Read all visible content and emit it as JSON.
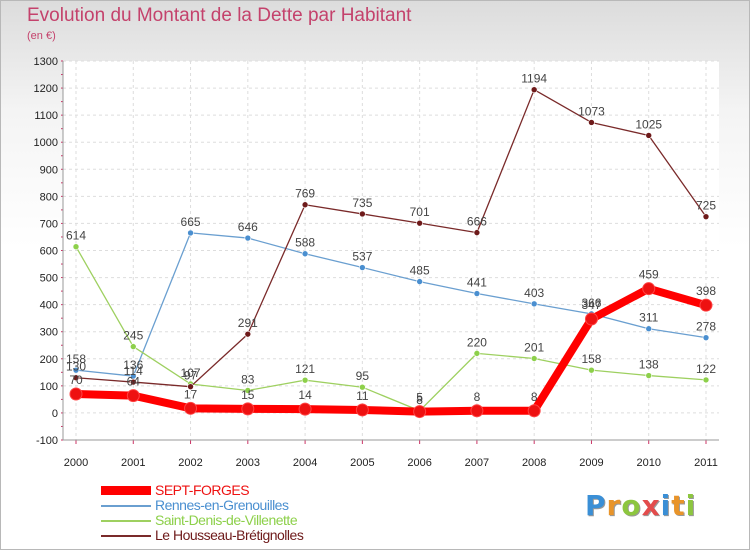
{
  "title": "Evolution du Montant de la Dette par Habitant",
  "subtitle": "(en €)",
  "logo": {
    "text": "Proxiti",
    "letter_colors": [
      "#3a8fd6",
      "#e8942a",
      "#8dc63f",
      "#e34c4c",
      "#3a8fd6",
      "#e8942a",
      "#8dc63f"
    ]
  },
  "chart_data": {
    "type": "line",
    "title": "Evolution du Montant de la Dette par Habitant",
    "ylabel": "(en €)",
    "xlabel": "",
    "x": [
      "2000",
      "2001",
      "2002",
      "2003",
      "2004",
      "2005",
      "2006",
      "2007",
      "2008",
      "2009",
      "2010",
      "2011"
    ],
    "ylim": [
      -100,
      1300
    ],
    "yticks": [
      -100,
      0,
      100,
      200,
      300,
      400,
      500,
      600,
      700,
      800,
      900,
      1000,
      1100,
      1200,
      1300
    ],
    "grid": true,
    "legend_position": "bottom-left",
    "series": [
      {
        "name": "SEPT-FORGES",
        "color": "#ee1111",
        "line_color": "#ff0000",
        "emphasis": true,
        "values": [
          70,
          64,
          17,
          15,
          14,
          11,
          5,
          8,
          8,
          347,
          459,
          398
        ],
        "labels": [
          "70",
          "64",
          "17",
          "15",
          "14",
          "11",
          "5",
          "8",
          "8",
          "347",
          "459",
          "398"
        ]
      },
      {
        "name": "Rennes-en-Grenouilles",
        "color": "#4a8fd0",
        "line_color": "#6a9fd0",
        "emphasis": false,
        "values": [
          158,
          136,
          665,
          646,
          588,
          537,
          485,
          441,
          403,
          366,
          311,
          278
        ],
        "labels": [
          "158",
          "136",
          "665",
          "646",
          "588",
          "537",
          "485",
          "441",
          "403",
          "366",
          "311",
          "278"
        ]
      },
      {
        "name": "Saint-Denis-de-Villenette",
        "color": "#8dd04a",
        "line_color": "#9ed060",
        "emphasis": false,
        "values": [
          614,
          245,
          107,
          83,
          121,
          95,
          8,
          220,
          201,
          158,
          138,
          122
        ],
        "labels": [
          "614",
          "245",
          "107",
          "83",
          "121",
          "95",
          "8",
          "220",
          "201",
          "158",
          "138",
          "122"
        ]
      },
      {
        "name": "Le Housseau-Brétignolles",
        "color": "#6e1a1a",
        "line_color": "#7a2a2a",
        "emphasis": false,
        "values": [
          130,
          114,
          97,
          291,
          769,
          735,
          701,
          666,
          1194,
          1073,
          1025,
          725
        ],
        "labels": [
          "130",
          "114",
          "97",
          "291",
          "769",
          "735",
          "701",
          "666",
          "1194",
          "1073",
          "1025",
          "725"
        ]
      }
    ]
  }
}
